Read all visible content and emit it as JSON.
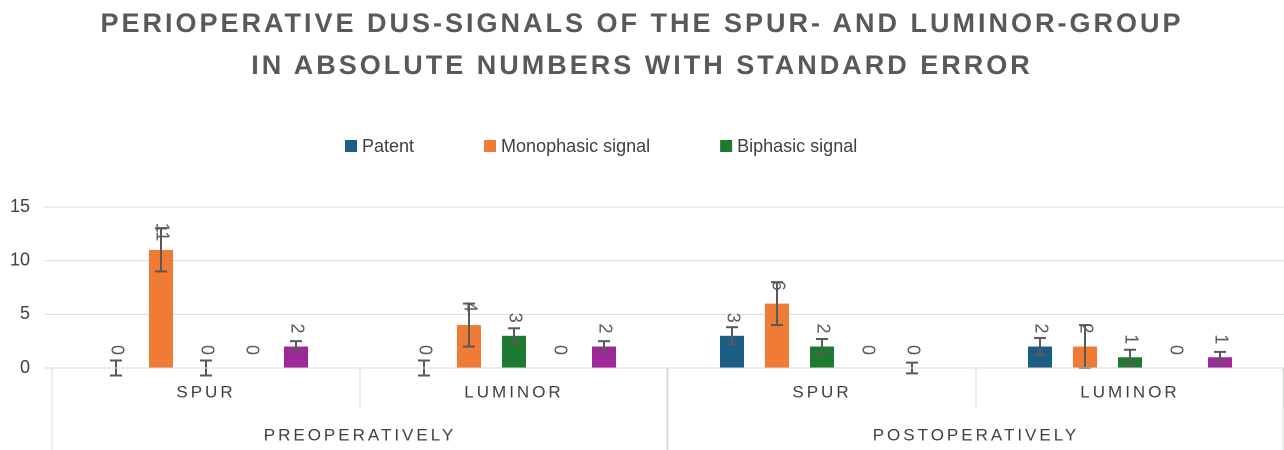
{
  "chart_data": {
    "type": "bar",
    "title": "PERIOPERATIVE DUS-SIGNALS OF THE SPUR- AND LUMINOR-GROUP IN ABSOLUTE NUMBERS WITH STANDARD ERROR",
    "categories": [
      "SPUR",
      "LUMINOR",
      "SPUR",
      "LUMINOR"
    ],
    "category_groups": [
      "PREOPERATIVELY",
      "POSTOPERATIVELY"
    ],
    "series": [
      {
        "name": "Patent",
        "color": "#1b5f86",
        "values": [
          0,
          0,
          3,
          2
        ],
        "errors": [
          0.7,
          0.7,
          0.8,
          0.8
        ]
      },
      {
        "name": "Monophasic signal",
        "color": "#ef7b35",
        "values": [
          11,
          4,
          6,
          2
        ],
        "errors": [
          2,
          2,
          2,
          2
        ]
      },
      {
        "name": "Biphasic signal",
        "color": "#1e7a2e",
        "values": [
          0,
          3,
          2,
          1
        ],
        "errors": [
          0.7,
          0.7,
          0.7,
          0.7
        ]
      },
      {
        "values": [
          0,
          0,
          0,
          0
        ]
      },
      {
        "color": "#a0269a",
        "values": [
          2,
          2,
          0,
          1
        ],
        "errors": [
          0.5,
          0.5,
          0.5,
          0.5
        ]
      }
    ],
    "ylim": [
      0,
      15
    ],
    "yticks": [
      0,
      5,
      10,
      15
    ],
    "grid": true,
    "legend": "top",
    "data_labels": true
  }
}
